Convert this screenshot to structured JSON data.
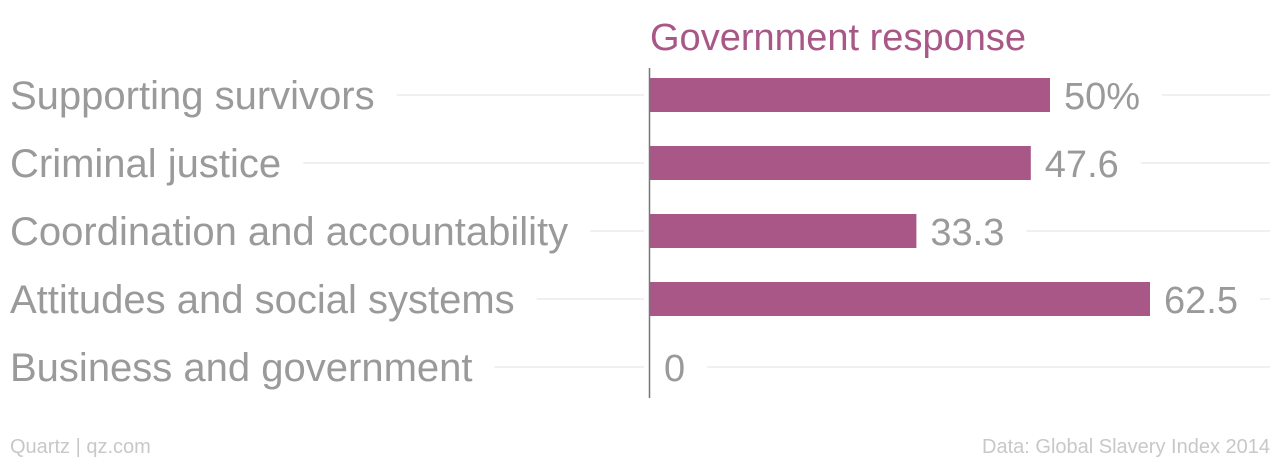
{
  "chart_data": {
    "type": "bar",
    "orientation": "horizontal",
    "title": "Government response",
    "categories": [
      "Supporting survivors",
      "Criminal justice",
      "Coordination and accountability",
      "Attitudes and social systems",
      "Business and government"
    ],
    "values": [
      50,
      47.6,
      33.3,
      62.5,
      0
    ],
    "value_labels": [
      "50%",
      "47.6",
      "33.3",
      "62.5",
      "0"
    ],
    "xlim": [
      0,
      100
    ],
    "grid": true
  },
  "footer": {
    "left": "Quartz | qz.com",
    "right": "Data: Global Slavery Index 2014"
  },
  "colors": {
    "bar": "#a85786",
    "title": "#a85786",
    "label": "#9a9a9a",
    "grid": "#ebebeb",
    "axis": "#777777",
    "footer": "#c8c8c8"
  }
}
